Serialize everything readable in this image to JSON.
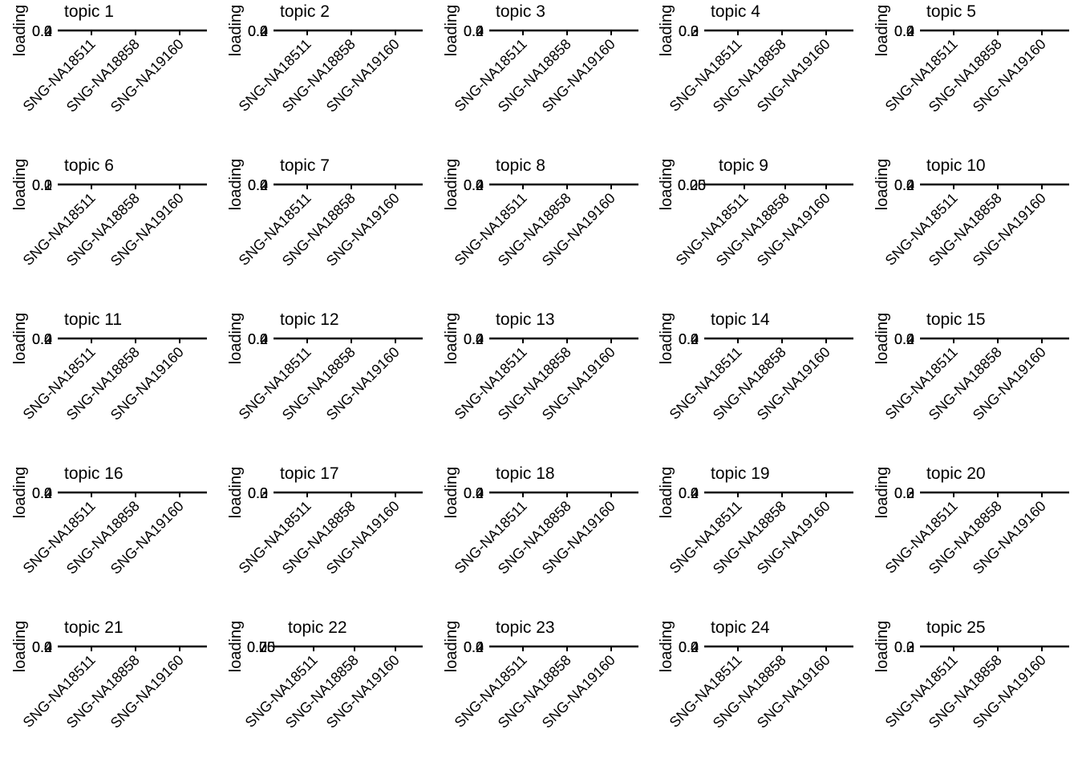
{
  "chart_data": {
    "type": "bar",
    "layout": "5x5 small multiples",
    "ylabel": "loading",
    "categories": [
      "SNG-NA18511",
      "SNG-NA18858",
      "SNG-NA19160"
    ],
    "panels": [
      {
        "title": "topic 1",
        "ytick_labels": [
          "0.4",
          "0.2",
          "0.0"
        ],
        "values": [
          0,
          0,
          0
        ]
      },
      {
        "title": "topic 2",
        "ytick_labels": [
          "0.4",
          "0.2",
          "0.0"
        ],
        "values": [
          0,
          0,
          0
        ]
      },
      {
        "title": "topic 3",
        "ytick_labels": [
          "0.4",
          "0.2",
          "0.0"
        ],
        "values": [
          0,
          0,
          0
        ]
      },
      {
        "title": "topic 4",
        "ytick_labels": [
          "0.3",
          "0.2",
          "0.0"
        ],
        "values": [
          0,
          0,
          0
        ]
      },
      {
        "title": "topic 5",
        "ytick_labels": [
          "0.4",
          "0.2",
          "0.0"
        ],
        "values": [
          0,
          0,
          0
        ]
      },
      {
        "title": "topic 6",
        "ytick_labels": [
          "0.2",
          "0.1",
          "0.0"
        ],
        "values": [
          0,
          0,
          0
        ]
      },
      {
        "title": "topic 7",
        "ytick_labels": [
          "0.4",
          "0.2",
          "0.0"
        ],
        "values": [
          0,
          0,
          0
        ]
      },
      {
        "title": "topic 8",
        "ytick_labels": [
          "0.4",
          "0.2",
          "0.0"
        ],
        "values": [
          0,
          0,
          0
        ]
      },
      {
        "title": "topic 9",
        "ytick_labels": [
          "0.05",
          "0.25",
          "0.00"
        ],
        "values": [
          0,
          0,
          0
        ]
      },
      {
        "title": "topic 10",
        "ytick_labels": [
          "0.4",
          "0.2",
          "0.0"
        ],
        "values": [
          0,
          0,
          0
        ]
      },
      {
        "title": "topic 11",
        "ytick_labels": [
          "0.4",
          "0.2",
          "0.0"
        ],
        "values": [
          0,
          0,
          0
        ]
      },
      {
        "title": "topic 12",
        "ytick_labels": [
          "0.4",
          "0.2",
          "0.0"
        ],
        "values": [
          0,
          0,
          0
        ]
      },
      {
        "title": "topic 13",
        "ytick_labels": [
          "0.4",
          "0.2",
          "0.0"
        ],
        "values": [
          0,
          0,
          0
        ]
      },
      {
        "title": "topic 14",
        "ytick_labels": [
          "0.4",
          "0.2",
          "0.0"
        ],
        "values": [
          0,
          0,
          0
        ]
      },
      {
        "title": "topic 15",
        "ytick_labels": [
          "0.4",
          "0.2",
          "0.0"
        ],
        "values": [
          0,
          0,
          0
        ]
      },
      {
        "title": "topic 16",
        "ytick_labels": [
          "0.4",
          "0.2",
          "0.0"
        ],
        "values": [
          0,
          0,
          0
        ]
      },
      {
        "title": "topic 17",
        "ytick_labels": [
          "0.3",
          "0.2",
          "0.0"
        ],
        "values": [
          0,
          0,
          0
        ]
      },
      {
        "title": "topic 18",
        "ytick_labels": [
          "0.4",
          "0.2",
          "0.0"
        ],
        "values": [
          0,
          0,
          0
        ]
      },
      {
        "title": "topic 19",
        "ytick_labels": [
          "0.4",
          "0.2",
          "0.0"
        ],
        "values": [
          0,
          0,
          0
        ]
      },
      {
        "title": "topic 20",
        "ytick_labels": [
          "0.3",
          "0.2",
          "0.0"
        ],
        "values": [
          0,
          0,
          0
        ]
      },
      {
        "title": "topic 21",
        "ytick_labels": [
          "0.4",
          "0.2",
          "0.0"
        ],
        "values": [
          0,
          0,
          0
        ]
      },
      {
        "title": "topic 22",
        "ytick_labels": [
          "0.75",
          "0.25",
          "0.00"
        ],
        "values": [
          0,
          0,
          0
        ]
      },
      {
        "title": "topic 23",
        "ytick_labels": [
          "0.4",
          "0.2",
          "0.0"
        ],
        "values": [
          0,
          0,
          0
        ]
      },
      {
        "title": "topic 24",
        "ytick_labels": [
          "0.4",
          "0.2",
          "0.0"
        ],
        "values": [
          0,
          0,
          0
        ]
      },
      {
        "title": "topic 25",
        "ytick_labels": [
          "0.3",
          "0.2",
          "0.0"
        ],
        "values": [
          0,
          0,
          0
        ]
      }
    ],
    "grid": false,
    "legend": "none",
    "colors": {
      "axis": "#000000",
      "text": "#000000",
      "bar": "#000000"
    }
  }
}
